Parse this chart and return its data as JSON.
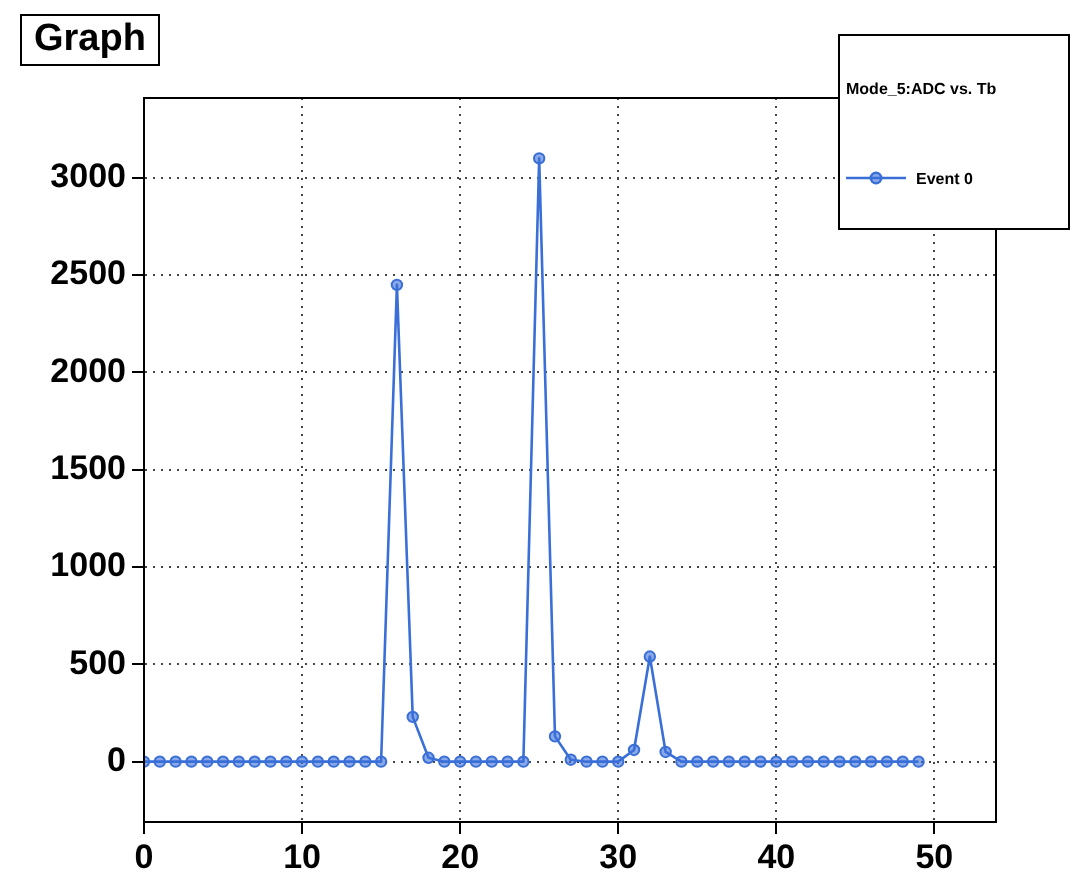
{
  "chart_data": {
    "type": "line",
    "title": "Graph",
    "legend_title": "Mode_5:ADC vs. Tb",
    "x": [
      0,
      1,
      2,
      3,
      4,
      5,
      6,
      7,
      8,
      9,
      10,
      11,
      12,
      13,
      14,
      15,
      16,
      17,
      18,
      19,
      20,
      21,
      22,
      23,
      24,
      25,
      26,
      27,
      28,
      29,
      30,
      31,
      32,
      33,
      34,
      35,
      36,
      37,
      38,
      39,
      40,
      41,
      42,
      43,
      44,
      45,
      46,
      47,
      48,
      49
    ],
    "series": [
      {
        "name": "Event 0",
        "color": "#3a6fd8",
        "values": [
          0,
          0,
          0,
          0,
          0,
          0,
          0,
          0,
          0,
          0,
          0,
          0,
          0,
          0,
          0,
          0,
          2450,
          230,
          20,
          0,
          0,
          0,
          0,
          0,
          0,
          3100,
          130,
          10,
          0,
          0,
          0,
          60,
          540,
          50,
          0,
          0,
          0,
          0,
          0,
          0,
          0,
          0,
          0,
          0,
          0,
          0,
          0,
          0,
          0,
          0
        ]
      }
    ],
    "xlim": [
      0,
      53.9
    ],
    "ylim": [
      -310,
      3410
    ],
    "xticks": [
      0,
      10,
      20,
      30,
      40,
      50
    ],
    "yticks": [
      0,
      500,
      1000,
      1500,
      2000,
      2500,
      3000
    ],
    "grid": true,
    "legend": "top right",
    "marker": "circle",
    "line_style": "solid"
  }
}
